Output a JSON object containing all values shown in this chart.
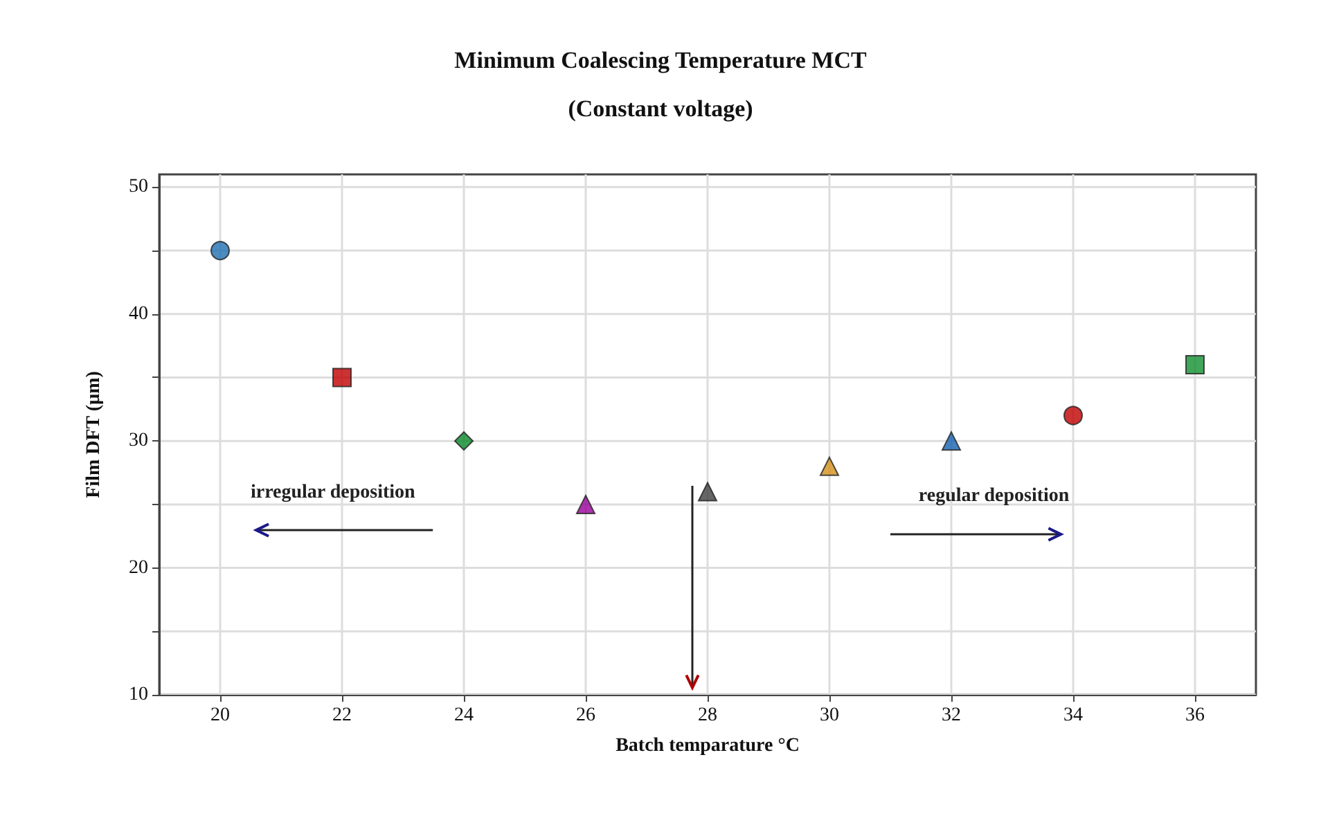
{
  "chart_data": {
    "type": "scatter",
    "title": "Minimum Coalescing Temperature MCT",
    "subtitle": "(Constant voltage)",
    "xlabel": "Batch temparature °C",
    "ylabel": "Film DFT (µm)",
    "xlim": [
      19,
      37
    ],
    "xticks": [
      20,
      22,
      24,
      26,
      28,
      30,
      32,
      34,
      36
    ],
    "ylim": [
      10,
      51
    ],
    "yticks": [
      10,
      {
        "value": 15,
        "label": null
      },
      20,
      {
        "value": 25,
        "label": null
      },
      30,
      {
        "value": 35,
        "label": null
      },
      40,
      {
        "value": 45,
        "label": null
      },
      50
    ],
    "grid": true,
    "series": [
      {
        "x": [
          20
        ],
        "values": [
          45
        ],
        "color": "#1f6fb2",
        "marker": "circle"
      },
      {
        "x": [
          22
        ],
        "values": [
          35
        ],
        "color": "#c00000",
        "marker": "square"
      },
      {
        "x": [
          24
        ],
        "values": [
          30
        ],
        "color": "#0a8a2a",
        "marker": "diamond"
      },
      {
        "x": [
          26
        ],
        "values": [
          25
        ],
        "color": "#990099",
        "marker": "triangle"
      },
      {
        "x": [
          28
        ],
        "values": [
          26
        ],
        "color": "#404040",
        "marker": "triangle"
      },
      {
        "x": [
          30
        ],
        "values": [
          28
        ],
        "color": "#d4901a",
        "marker": "triangle"
      },
      {
        "x": [
          32
        ],
        "values": [
          30
        ],
        "color": "#1560b0",
        "marker": "triangle"
      },
      {
        "x": [
          34
        ],
        "values": [
          32
        ],
        "color": "#c00000",
        "marker": "circle"
      },
      {
        "x": [
          36
        ],
        "values": [
          36
        ],
        "color": "#109030",
        "marker": "square"
      }
    ],
    "annotations": [
      "irregular deposition",
      "regular deposition"
    ]
  }
}
